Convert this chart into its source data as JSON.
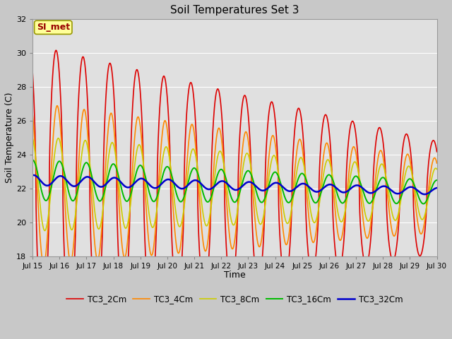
{
  "title": "Soil Temperatures Set 3",
  "xlabel": "Time",
  "ylabel": "Soil Temperature (C)",
  "ylim": [
    18,
    32
  ],
  "xlim": [
    0,
    360
  ],
  "fig_facecolor": "#c8c8c8",
  "plot_facecolor": "#e0e0e0",
  "annotation_text": "SI_met",
  "annotation_color": "#990000",
  "annotation_bg": "#ffff99",
  "annotation_edgecolor": "#999900",
  "legend_labels": [
    "TC3_2Cm",
    "TC3_4Cm",
    "TC3_8Cm",
    "TC3_16Cm",
    "TC3_32Cm"
  ],
  "line_colors": [
    "#dd0000",
    "#ff8800",
    "#cccc00",
    "#00bb00",
    "#0000cc"
  ],
  "line_widths": [
    1.2,
    1.2,
    1.2,
    1.4,
    1.8
  ],
  "xtick_positions": [
    0,
    24,
    48,
    72,
    96,
    120,
    144,
    168,
    192,
    216,
    240,
    264,
    288,
    312,
    336,
    360
  ],
  "xtick_labels": [
    "Jul 15",
    "Jul 16",
    "Jul 17",
    "Jul 18",
    "Jul 19",
    "Jul 20",
    "Jul 21",
    "Jul 22",
    "Jul 23",
    "Jul 24",
    "Jul 25",
    "Jul 26",
    "Jul 27",
    "Jul 28",
    "Jul 29",
    "Jul 30"
  ],
  "ytick_positions": [
    18,
    20,
    22,
    24,
    26,
    28,
    30,
    32
  ],
  "ytick_labels": [
    "18",
    "20",
    "22",
    "24",
    "26",
    "28",
    "30",
    "32"
  ],
  "grid_color": "#ffffff",
  "grid_lw": 0.8
}
